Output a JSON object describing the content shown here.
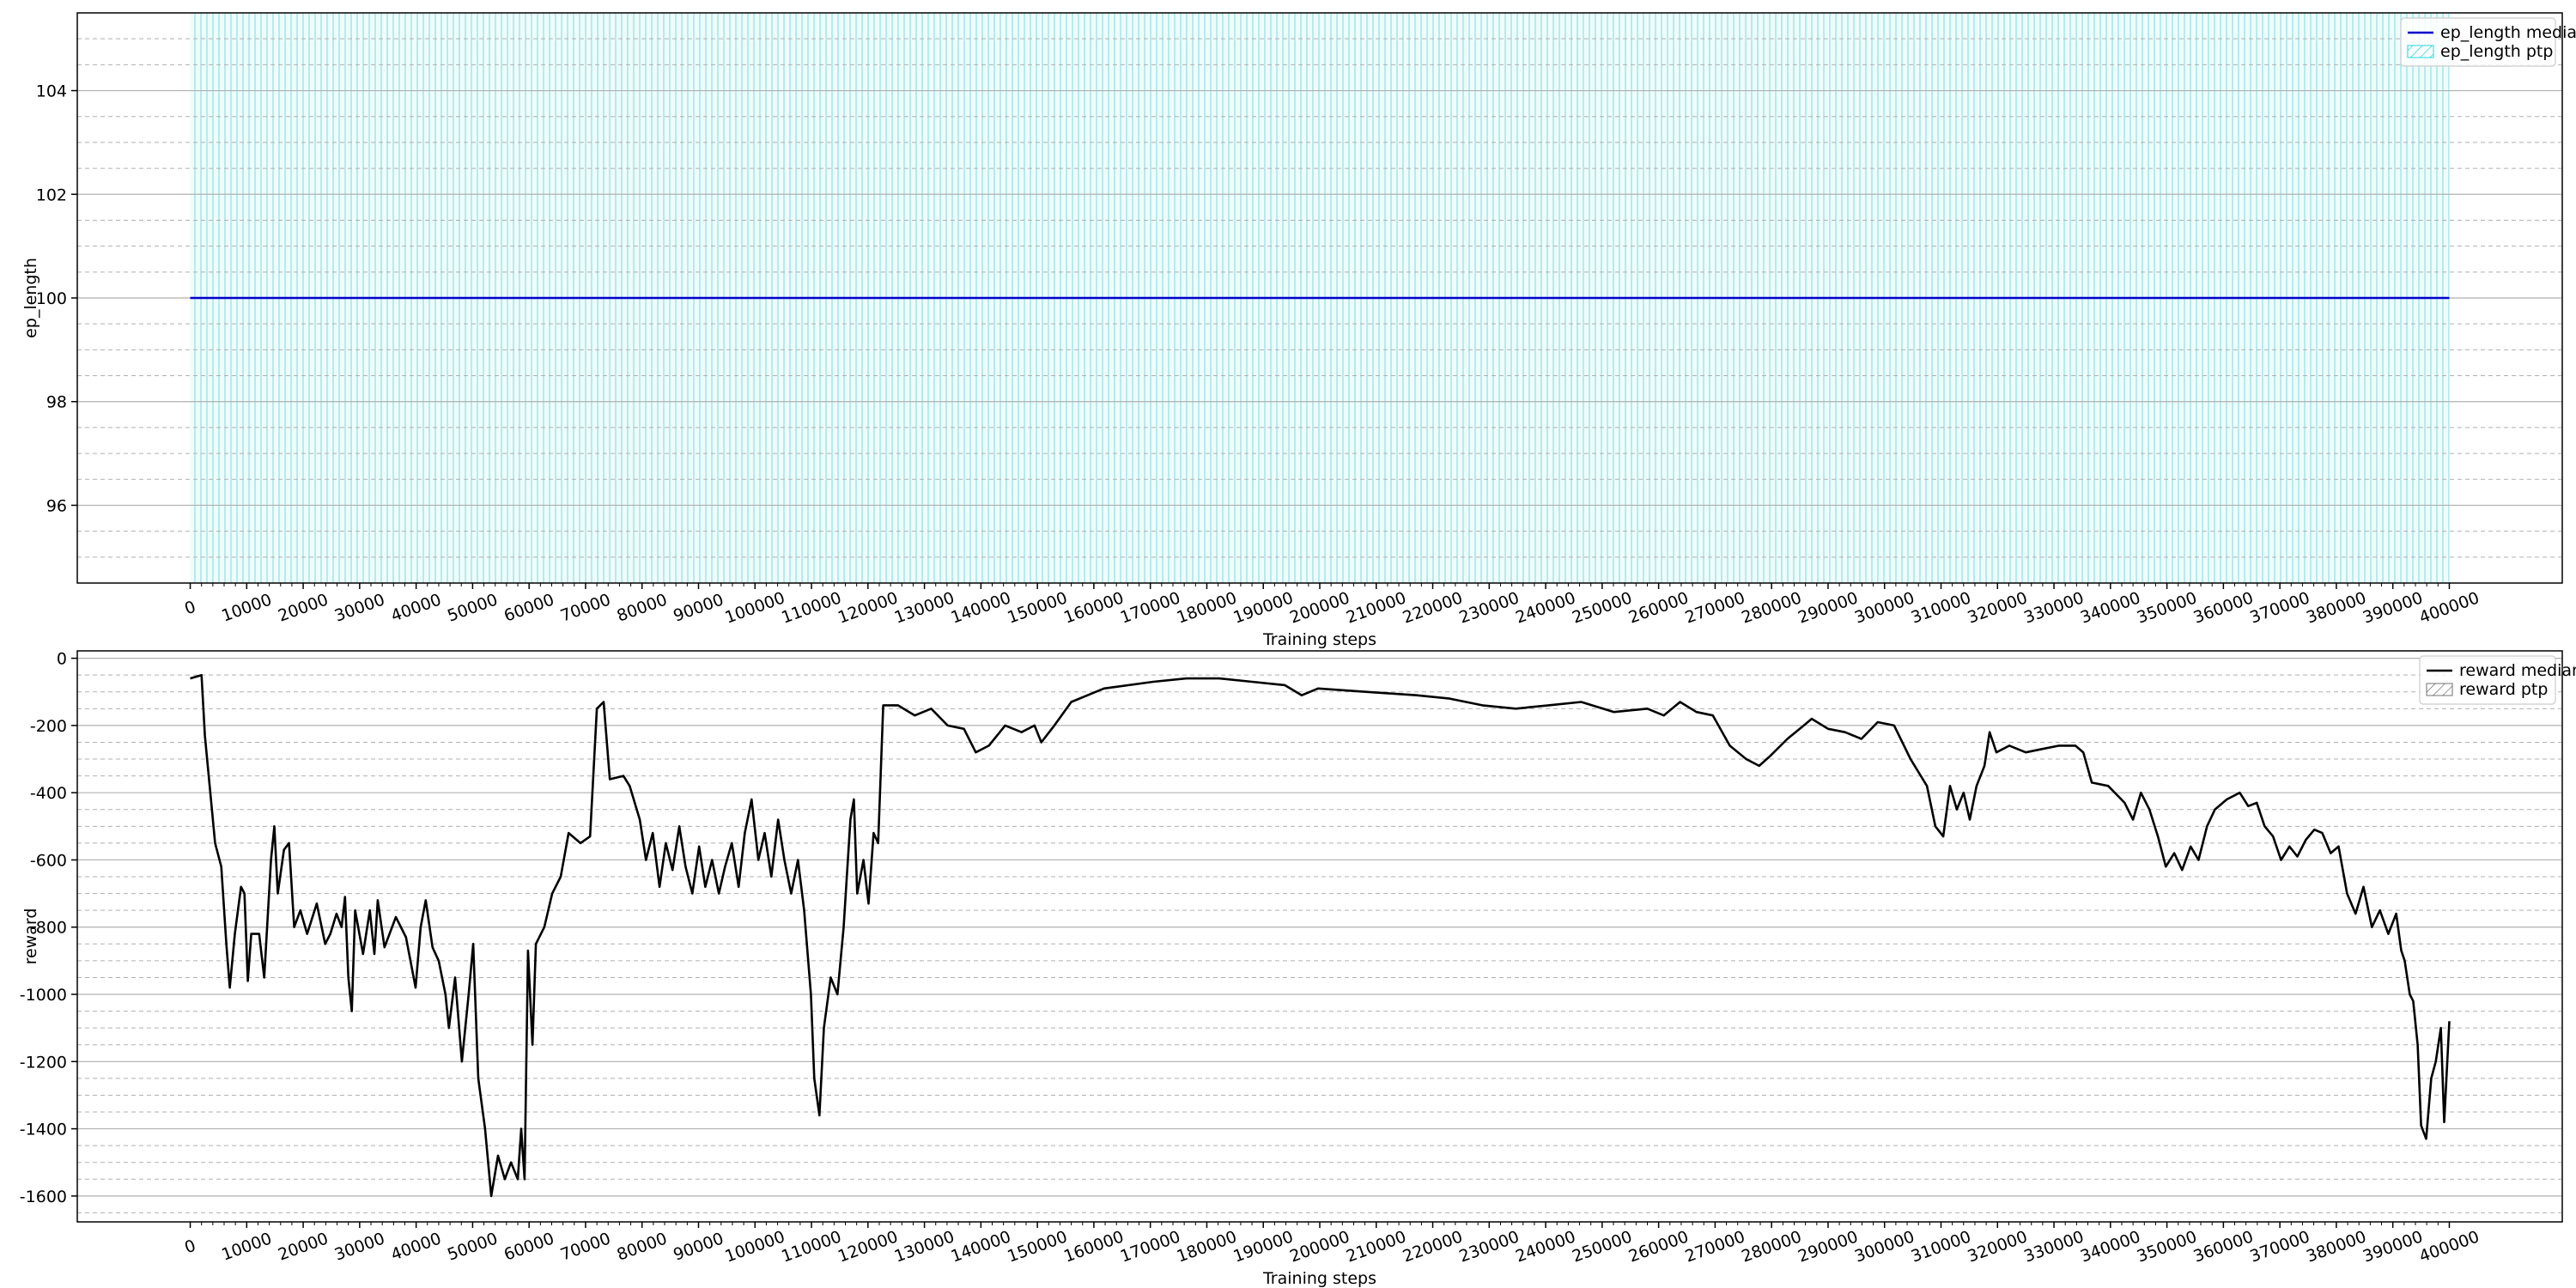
{
  "chart_data": [
    {
      "type": "line",
      "xlabel": "Training steps",
      "ylabel": "ep_length",
      "x": [
        0,
        400000
      ],
      "series": [
        {
          "name": "ep_length median",
          "color": "#0000cc",
          "values": [
            100,
            100
          ]
        }
      ],
      "band": {
        "name": "ep_length ptp",
        "color": "#00cccc"
      },
      "xlim": [
        -20000,
        420000
      ],
      "ylim": [
        94.5,
        105.5
      ],
      "xticks": [
        0,
        10000,
        20000,
        30000,
        40000,
        50000,
        60000,
        70000,
        80000,
        90000,
        100000,
        110000,
        120000,
        130000,
        140000,
        150000,
        160000,
        170000,
        180000,
        190000,
        200000,
        210000,
        220000,
        230000,
        240000,
        250000,
        260000,
        270000,
        280000,
        290000,
        300000,
        310000,
        320000,
        330000,
        340000,
        350000,
        360000,
        370000,
        380000,
        390000,
        400000
      ],
      "yticks": [
        96,
        98,
        100,
        102,
        104
      ],
      "minor_yticks": [
        95,
        95.5,
        96.5,
        97,
        97.5,
        98.5,
        99,
        99.5,
        100.5,
        101,
        101.5,
        102.5,
        103,
        103.5,
        104.5,
        105
      ],
      "grid": true,
      "legend": "upper right"
    },
    {
      "type": "line",
      "xlabel": "Training steps",
      "ylabel": "reward",
      "x": [
        0,
        2000,
        2600,
        4400,
        5500,
        6400,
        7000,
        7900,
        9000,
        9600,
        10200,
        10800,
        12200,
        13100,
        14300,
        14900,
        15500,
        16600,
        17500,
        18400,
        19500,
        20700,
        22400,
        23900,
        24800,
        25900,
        26800,
        27400,
        28000,
        28600,
        29200,
        30600,
        31800,
        32600,
        33200,
        34400,
        36400,
        38200,
        39900,
        40800,
        41700,
        42900,
        44000,
        45200,
        45800,
        46900,
        48100,
        49300,
        50100,
        51000,
        52200,
        53300,
        54500,
        55700,
        56800,
        58000,
        58600,
        59200,
        59800,
        60600,
        61200,
        62700,
        64100,
        65600,
        67000,
        69100,
        70800,
        72000,
        73200,
        74300,
        76700,
        77800,
        79600,
        80700,
        81900,
        83100,
        84200,
        85400,
        86600,
        87700,
        88900,
        90100,
        91200,
        92400,
        93600,
        94700,
        95900,
        97100,
        98200,
        99400,
        100600,
        101700,
        102900,
        104100,
        105200,
        106400,
        107600,
        108700,
        109900,
        110500,
        111400,
        112200,
        113400,
        114600,
        115700,
        116900,
        117500,
        118100,
        119200,
        120100,
        121000,
        121800,
        122700,
        125300,
        128300,
        131200,
        134100,
        137000,
        139100,
        141400,
        144300,
        147200,
        149500,
        150700,
        153000,
        156000,
        161800,
        170500,
        176400,
        182200,
        188000,
        193800,
        196800,
        199700,
        208400,
        217200,
        223000,
        228800,
        234700,
        240500,
        246300,
        252100,
        258000,
        260900,
        263800,
        266700,
        269600,
        272600,
        275500,
        277800,
        279800,
        282800,
        285700,
        287100,
        290000,
        293000,
        295900,
        298800,
        301700,
        304600,
        307500,
        309000,
        310400,
        311600,
        312800,
        314000,
        315100,
        316300,
        317700,
        318600,
        319800,
        322100,
        325000,
        327900,
        330900,
        333800,
        335200,
        336700,
        339600,
        342500,
        344000,
        345400,
        346900,
        348400,
        349800,
        351300,
        352700,
        354200,
        355600,
        357100,
        358500,
        360600,
        362900,
        364400,
        365900,
        367300,
        368800,
        370200,
        371700,
        373100,
        374600,
        376100,
        377500,
        379000,
        380400,
        381900,
        383400,
        384800,
        386300,
        387700,
        389200,
        390600,
        391500,
        392100,
        393000,
        393600,
        394400,
        395000,
        395900,
        396800,
        397600,
        398500,
        399100,
        400000
      ],
      "series": [
        {
          "name": "reward median",
          "color": "#000000",
          "values": [
            -60,
            -50,
            -230,
            -550,
            -620,
            -850,
            -980,
            -820,
            -680,
            -700,
            -960,
            -820,
            -820,
            -950,
            -600,
            -500,
            -700,
            -570,
            -550,
            -800,
            -750,
            -820,
            -730,
            -850,
            -820,
            -760,
            -800,
            -710,
            -950,
            -1050,
            -750,
            -880,
            -750,
            -880,
            -720,
            -860,
            -770,
            -830,
            -980,
            -800,
            -720,
            -860,
            -900,
            -1000,
            -1100,
            -950,
            -1200,
            -1000,
            -850,
            -1250,
            -1400,
            -1600,
            -1480,
            -1550,
            -1500,
            -1550,
            -1400,
            -1550,
            -870,
            -1150,
            -850,
            -800,
            -700,
            -650,
            -520,
            -550,
            -530,
            -150,
            -130,
            -360,
            -350,
            -380,
            -480,
            -600,
            -520,
            -680,
            -550,
            -630,
            -500,
            -620,
            -700,
            -560,
            -680,
            -600,
            -700,
            -620,
            -550,
            -680,
            -520,
            -420,
            -600,
            -520,
            -650,
            -480,
            -600,
            -700,
            -600,
            -750,
            -1000,
            -1250,
            -1360,
            -1100,
            -950,
            -1000,
            -800,
            -480,
            -420,
            -700,
            -600,
            -730,
            -520,
            -550,
            -140,
            -140,
            -170,
            -150,
            -200,
            -210,
            -280,
            -260,
            -200,
            -220,
            -200,
            -250,
            -200,
            -130,
            -90,
            -70,
            -60,
            -60,
            -70,
            -80,
            -110,
            -90,
            -100,
            -110,
            -120,
            -140,
            -150,
            -140,
            -130,
            -160,
            -150,
            -170,
            -130,
            -160,
            -170,
            -260,
            -300,
            -320,
            -290,
            -240,
            -200,
            -180,
            -210,
            -220,
            -240,
            -190,
            -200,
            -300,
            -380,
            -500,
            -530,
            -380,
            -450,
            -400,
            -480,
            -380,
            -320,
            -220,
            -280,
            -260,
            -280,
            -270,
            -260,
            -260,
            -280,
            -370,
            -380,
            -430,
            -480,
            -400,
            -450,
            -530,
            -620,
            -580,
            -630,
            -560,
            -600,
            -500,
            -450,
            -420,
            -400,
            -440,
            -430,
            -500,
            -530,
            -600,
            -560,
            -590,
            -540,
            -510,
            -520,
            -580,
            -560,
            -700,
            -760,
            -680,
            -800,
            -750,
            -820,
            -760,
            -870,
            -900,
            -1000,
            -1020,
            -1150,
            -1390,
            -1430,
            -1250,
            -1200,
            -1100,
            -1380,
            -1080
          ]
        }
      ],
      "band": {
        "name": "reward ptp",
        "color": "#555555"
      },
      "xlim": [
        -20000,
        420000
      ],
      "ylim": [
        -1677,
        22
      ],
      "xticks": [
        0,
        10000,
        20000,
        30000,
        40000,
        50000,
        60000,
        70000,
        80000,
        90000,
        100000,
        110000,
        120000,
        130000,
        140000,
        150000,
        160000,
        170000,
        180000,
        190000,
        200000,
        210000,
        220000,
        230000,
        240000,
        250000,
        260000,
        270000,
        280000,
        290000,
        300000,
        310000,
        320000,
        330000,
        340000,
        350000,
        360000,
        370000,
        380000,
        390000,
        400000
      ],
      "yticks": [
        -1600,
        -1400,
        -1200,
        -1000,
        -800,
        -600,
        -400,
        -200,
        0
      ],
      "minor_yticks": [
        -1650,
        -1550,
        -1500,
        -1450,
        -1350,
        -1300,
        -1250,
        -1150,
        -1100,
        -1050,
        -950,
        -900,
        -850,
        -750,
        -700,
        -650,
        -550,
        -500,
        -450,
        -350,
        -300,
        -250,
        -150,
        -100,
        -50
      ],
      "grid": true,
      "legend": "upper right"
    }
  ]
}
